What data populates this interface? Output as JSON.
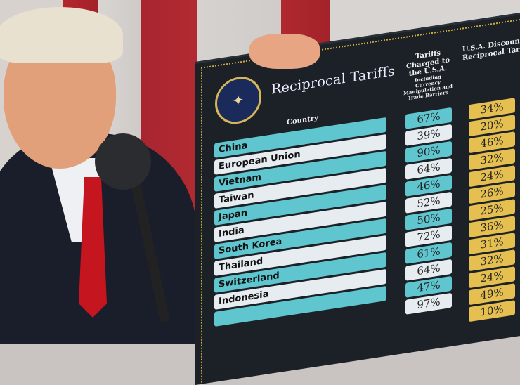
{
  "sign": {
    "title": "Reciprocal Tariffs",
    "seal_text": "SEAL OF THE PRESIDENT OF THE UNITED STATES",
    "headers": {
      "country": "Country",
      "tariffs_charged": "Tariffs Charged to the U.S.A.",
      "tariffs_charged_note": "Including Currency Manipulation and Trade Barriers",
      "discounted": "U.S.A. Discounted Reciprocal Tariffs"
    },
    "rows": [
      {
        "country": "China",
        "charged": "67%",
        "reciprocal": "34%"
      },
      {
        "country": "European Union",
        "charged": "39%",
        "reciprocal": "20%"
      },
      {
        "country": "Vietnam",
        "charged": "90%",
        "reciprocal": "46%"
      },
      {
        "country": "Taiwan",
        "charged": "64%",
        "reciprocal": "32%"
      },
      {
        "country": "Japan",
        "charged": "46%",
        "reciprocal": "24%"
      },
      {
        "country": "India",
        "charged": "52%",
        "reciprocal": "26%"
      },
      {
        "country": "South Korea",
        "charged": "50%",
        "reciprocal": "25%"
      },
      {
        "country": "Thailand",
        "charged": "72%",
        "reciprocal": "36%"
      },
      {
        "country": "Switzerland",
        "charged": "61%",
        "reciprocal": "31%"
      },
      {
        "country": "Indonesia",
        "charged": "64%",
        "reciprocal": "32%"
      },
      {
        "country": "",
        "charged": "47%",
        "reciprocal": "24%"
      },
      {
        "country": "",
        "charged": "97%",
        "reciprocal": "49%"
      },
      {
        "country": "",
        "charged": "",
        "reciprocal": "10%"
      }
    ],
    "colors": {
      "board": "#1b2127",
      "teal": "#5fc6cf",
      "white": "#e6ecf0",
      "gold": "#e5bf4f"
    }
  }
}
